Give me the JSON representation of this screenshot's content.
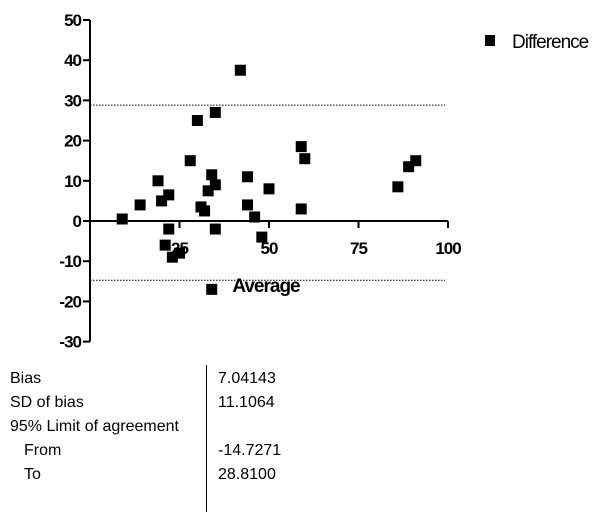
{
  "chart_data": {
    "type": "scatter",
    "xlabel": "Average",
    "ylabel": "",
    "xlim": [
      0,
      100
    ],
    "ylim": [
      -30,
      50
    ],
    "x_ticks": [
      "25",
      "50",
      "75",
      "100"
    ],
    "y_ticks": [
      "50",
      "40",
      "30",
      "20",
      "10",
      "0",
      "-10",
      "-20",
      "-30"
    ],
    "series": [
      {
        "name": "Difference",
        "marker": "square",
        "color": "#000000",
        "points": [
          [
            9,
            0.5
          ],
          [
            14,
            4
          ],
          [
            19,
            10
          ],
          [
            20,
            5
          ],
          [
            21,
            -6
          ],
          [
            22,
            6.5
          ],
          [
            22,
            -2
          ],
          [
            23,
            -9
          ],
          [
            25,
            -8
          ],
          [
            28,
            15
          ],
          [
            30,
            25
          ],
          [
            31,
            3.5
          ],
          [
            32,
            2.5
          ],
          [
            33,
            7.5
          ],
          [
            34,
            11.5
          ],
          [
            35,
            27
          ],
          [
            35,
            9
          ],
          [
            35,
            -2
          ],
          [
            34,
            -17
          ],
          [
            42,
            37.5
          ],
          [
            44,
            4
          ],
          [
            44,
            11
          ],
          [
            46,
            1
          ],
          [
            48,
            -4
          ],
          [
            50,
            8
          ],
          [
            59,
            18.5
          ],
          [
            59,
            3
          ],
          [
            60,
            15.5
          ],
          [
            86,
            8.5
          ],
          [
            89,
            13.5
          ],
          [
            91,
            15
          ]
        ]
      }
    ],
    "reference_lines": [
      {
        "y": 28.81
      },
      {
        "y": -14.7271
      }
    ],
    "legend_position": "top-right",
    "grid": false
  },
  "stats": [
    {
      "label": "Bias",
      "value": "7.04143",
      "indent": false
    },
    {
      "label": "SD of bias",
      "value": "11.1064",
      "indent": false
    },
    {
      "label": "95% Limit of agreement",
      "value": "",
      "indent": false
    },
    {
      "label": "From",
      "value": "-14.7271",
      "indent": true
    },
    {
      "label": "To",
      "value": "28.8100",
      "indent": true
    }
  ]
}
